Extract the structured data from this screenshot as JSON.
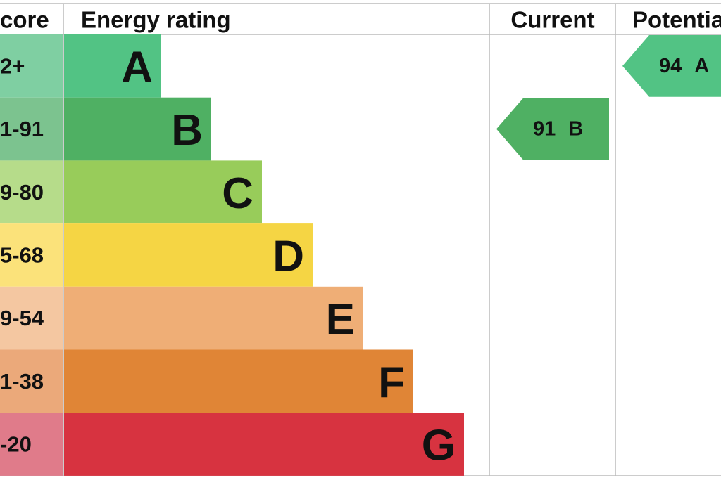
{
  "header": {
    "score": "core",
    "rating": "Energy rating",
    "current": "Current",
    "potential": "Potentia"
  },
  "rows": [
    {
      "score": "2+",
      "letter": "A"
    },
    {
      "score": "1-91",
      "letter": "B"
    },
    {
      "score": "9-80",
      "letter": "C"
    },
    {
      "score": "5-68",
      "letter": "D"
    },
    {
      "score": "9-54",
      "letter": "E"
    },
    {
      "score": "1-38",
      "letter": "F"
    },
    {
      "score": "-20",
      "letter": "G"
    }
  ],
  "current": {
    "value": 91,
    "letter": "B"
  },
  "potential": {
    "value": 94,
    "letter": "A"
  }
}
